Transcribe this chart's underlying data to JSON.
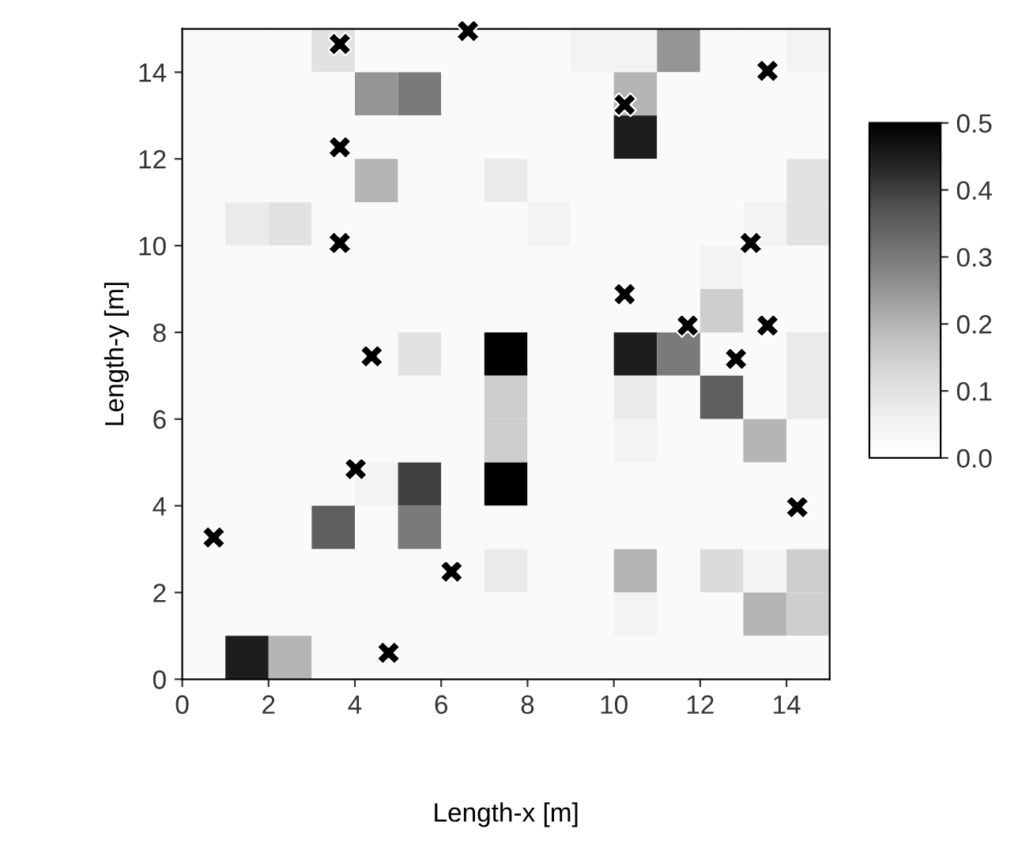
{
  "chart_data": {
    "type": "heatmap",
    "xlabel": "Length-x [m]",
    "ylabel": "Length-y [m]",
    "x": [
      0.5,
      1.5,
      2.5,
      3.5,
      4.5,
      5.5,
      6.5,
      7.5,
      8.5,
      9.5,
      10.5,
      11.5,
      12.5,
      13.5,
      14.5
    ],
    "y": [
      14.5,
      13.5,
      12.5,
      11.5,
      10.5,
      9.5,
      8.5,
      7.5,
      6.5,
      5.5,
      4.5,
      3.5,
      2.5,
      1.5,
      0.5
    ],
    "cells": [
      [
        0.02,
        0.02,
        0.02,
        0.1,
        0.02,
        0.02,
        0.02,
        0.02,
        0.02,
        0.05,
        0.05,
        0.25,
        0.02,
        0.02,
        0.05
      ],
      [
        0.02,
        0.02,
        0.02,
        0.02,
        0.25,
        0.3,
        0.02,
        0.02,
        0.02,
        0.02,
        0.2,
        0.02,
        0.02,
        0.02,
        0.02
      ],
      [
        0.02,
        0.02,
        0.02,
        0.02,
        0.02,
        0.02,
        0.02,
        0.02,
        0.02,
        0.02,
        0.45,
        0.02,
        0.02,
        0.02,
        0.02
      ],
      [
        0.02,
        0.02,
        0.02,
        0.02,
        0.2,
        0.02,
        0.02,
        0.08,
        0.02,
        0.02,
        0.02,
        0.02,
        0.02,
        0.02,
        0.1
      ],
      [
        0.02,
        0.08,
        0.1,
        0.02,
        0.02,
        0.02,
        0.02,
        0.02,
        0.05,
        0.02,
        0.02,
        0.02,
        0.02,
        0.05,
        0.1
      ],
      [
        0.02,
        0.02,
        0.02,
        0.02,
        0.02,
        0.02,
        0.02,
        0.02,
        0.02,
        0.02,
        0.02,
        0.02,
        0.05,
        0.02,
        0.02
      ],
      [
        0.02,
        0.02,
        0.02,
        0.02,
        0.02,
        0.02,
        0.02,
        0.02,
        0.02,
        0.02,
        0.02,
        0.02,
        0.15,
        0.02,
        0.02
      ],
      [
        0.02,
        0.02,
        0.02,
        0.02,
        0.02,
        0.1,
        0.02,
        0.5,
        0.02,
        0.02,
        0.45,
        0.3,
        0.02,
        0.02,
        0.08
      ],
      [
        0.02,
        0.02,
        0.02,
        0.02,
        0.02,
        0.02,
        0.02,
        0.15,
        0.02,
        0.02,
        0.08,
        0.02,
        0.35,
        0.02,
        0.08
      ],
      [
        0.02,
        0.02,
        0.02,
        0.02,
        0.02,
        0.02,
        0.02,
        0.15,
        0.02,
        0.02,
        0.05,
        0.02,
        0.02,
        0.2,
        0.02
      ],
      [
        0.02,
        0.02,
        0.02,
        0.02,
        0.05,
        0.4,
        0.02,
        0.5,
        0.02,
        0.02,
        0.02,
        0.02,
        0.02,
        0.02,
        0.02
      ],
      [
        0.02,
        0.02,
        0.02,
        0.35,
        0.02,
        0.3,
        0.02,
        0.02,
        0.02,
        0.02,
        0.02,
        0.02,
        0.02,
        0.02,
        0.02
      ],
      [
        0.02,
        0.02,
        0.02,
        0.02,
        0.02,
        0.02,
        0.02,
        0.08,
        0.02,
        0.02,
        0.2,
        0.02,
        0.12,
        0.05,
        0.15
      ],
      [
        0.02,
        0.02,
        0.02,
        0.02,
        0.02,
        0.02,
        0.02,
        0.02,
        0.02,
        0.02,
        0.05,
        0.02,
        0.02,
        0.2,
        0.15
      ],
      [
        0.02,
        0.45,
        0.2,
        0.02,
        0.02,
        0.02,
        0.02,
        0.02,
        0.02,
        0.02,
        0.02,
        0.02,
        0.02,
        0.02,
        0.02
      ]
    ],
    "clim": [
      0,
      0.5
    ],
    "cticks": [
      {
        "value": 0,
        "label": "0.0"
      },
      {
        "value": 0.1,
        "label": "0.1"
      },
      {
        "value": 0.2,
        "label": "0.2"
      },
      {
        "value": 0.3,
        "label": "0.3"
      },
      {
        "value": 0.4,
        "label": "0.4"
      },
      {
        "value": 0.5,
        "label": "0.5"
      }
    ],
    "xlim": [
      0,
      15
    ],
    "ylim": [
      0,
      15
    ],
    "xticks": [
      0,
      2,
      4,
      6,
      8,
      10,
      12,
      14
    ],
    "yticks": [
      0,
      2,
      4,
      6,
      8,
      10,
      12,
      14
    ],
    "grid": false,
    "series": [
      {
        "type": "scatter",
        "marker": "cross",
        "color": "#000000",
        "x": [
          3.65,
          6.62,
          13.56,
          10.25,
          3.65,
          3.65,
          13.17,
          10.25,
          11.71,
          13.56,
          4.39,
          12.83,
          4.02,
          14.25,
          0.73,
          6.24,
          4.78
        ],
        "values": [
          14.65,
          14.95,
          14.03,
          13.25,
          12.27,
          10.06,
          10.06,
          8.88,
          8.16,
          8.16,
          7.45,
          7.39,
          4.85,
          3.97,
          3.27,
          2.48,
          0.61
        ]
      }
    ]
  }
}
